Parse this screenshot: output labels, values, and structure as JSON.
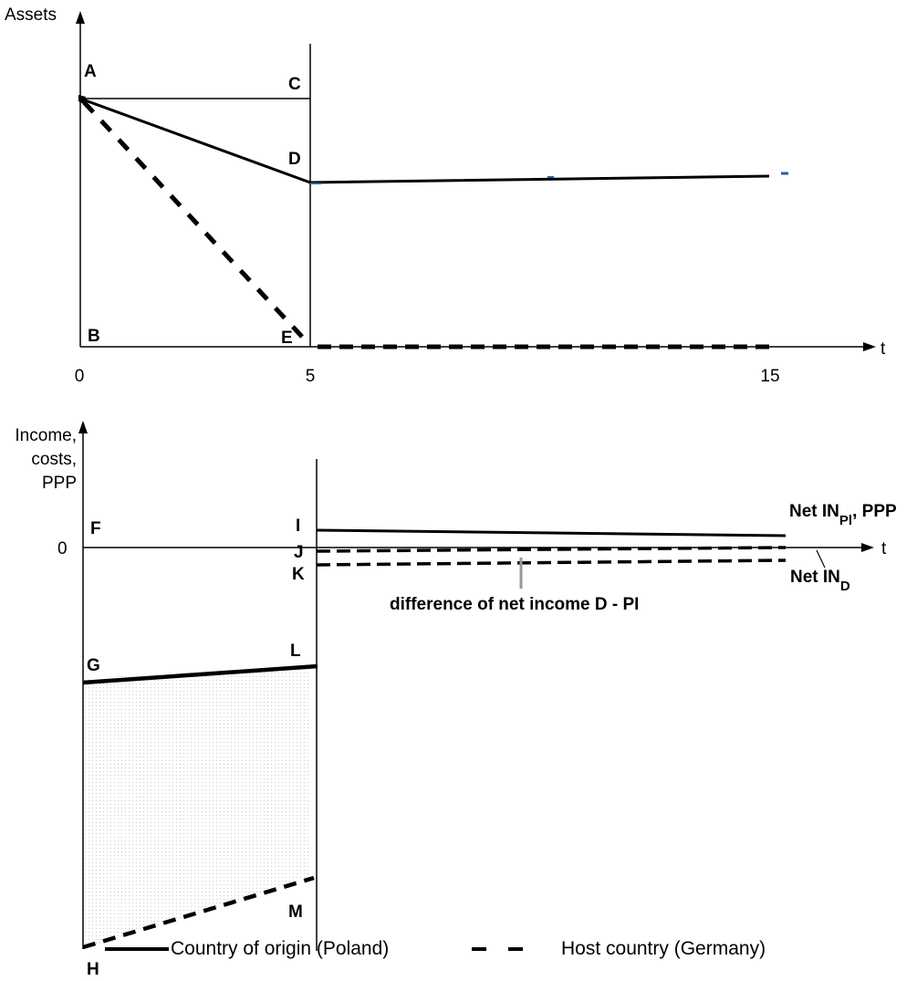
{
  "top_chart": {
    "y_axis_label": "Assets",
    "x_axis_label": "t",
    "x_ticks": [
      "0",
      "5",
      "15"
    ],
    "points": {
      "A": "A",
      "B": "B",
      "C": "C",
      "D": "D",
      "E": "E"
    }
  },
  "bottom_chart": {
    "y_axis_label_lines": [
      "Income,",
      "costs,",
      "PPP"
    ],
    "zero_label": "0",
    "x_axis_label": "t",
    "points": {
      "F": "F",
      "G": "G",
      "H": "H",
      "I": "I",
      "J": "J",
      "K": "K",
      "L": "L",
      "M": "M"
    },
    "net_pl": {
      "prefix": "Net IN",
      "sub": "Pl",
      "suffix": ", PPP"
    },
    "net_d": {
      "prefix": "Net IN",
      "sub": "D"
    },
    "difference_label": "difference of net income D - PI"
  },
  "legend": {
    "solid_label": "Country of origin (Poland)",
    "dashed_label": "Host country (Germany)"
  }
}
